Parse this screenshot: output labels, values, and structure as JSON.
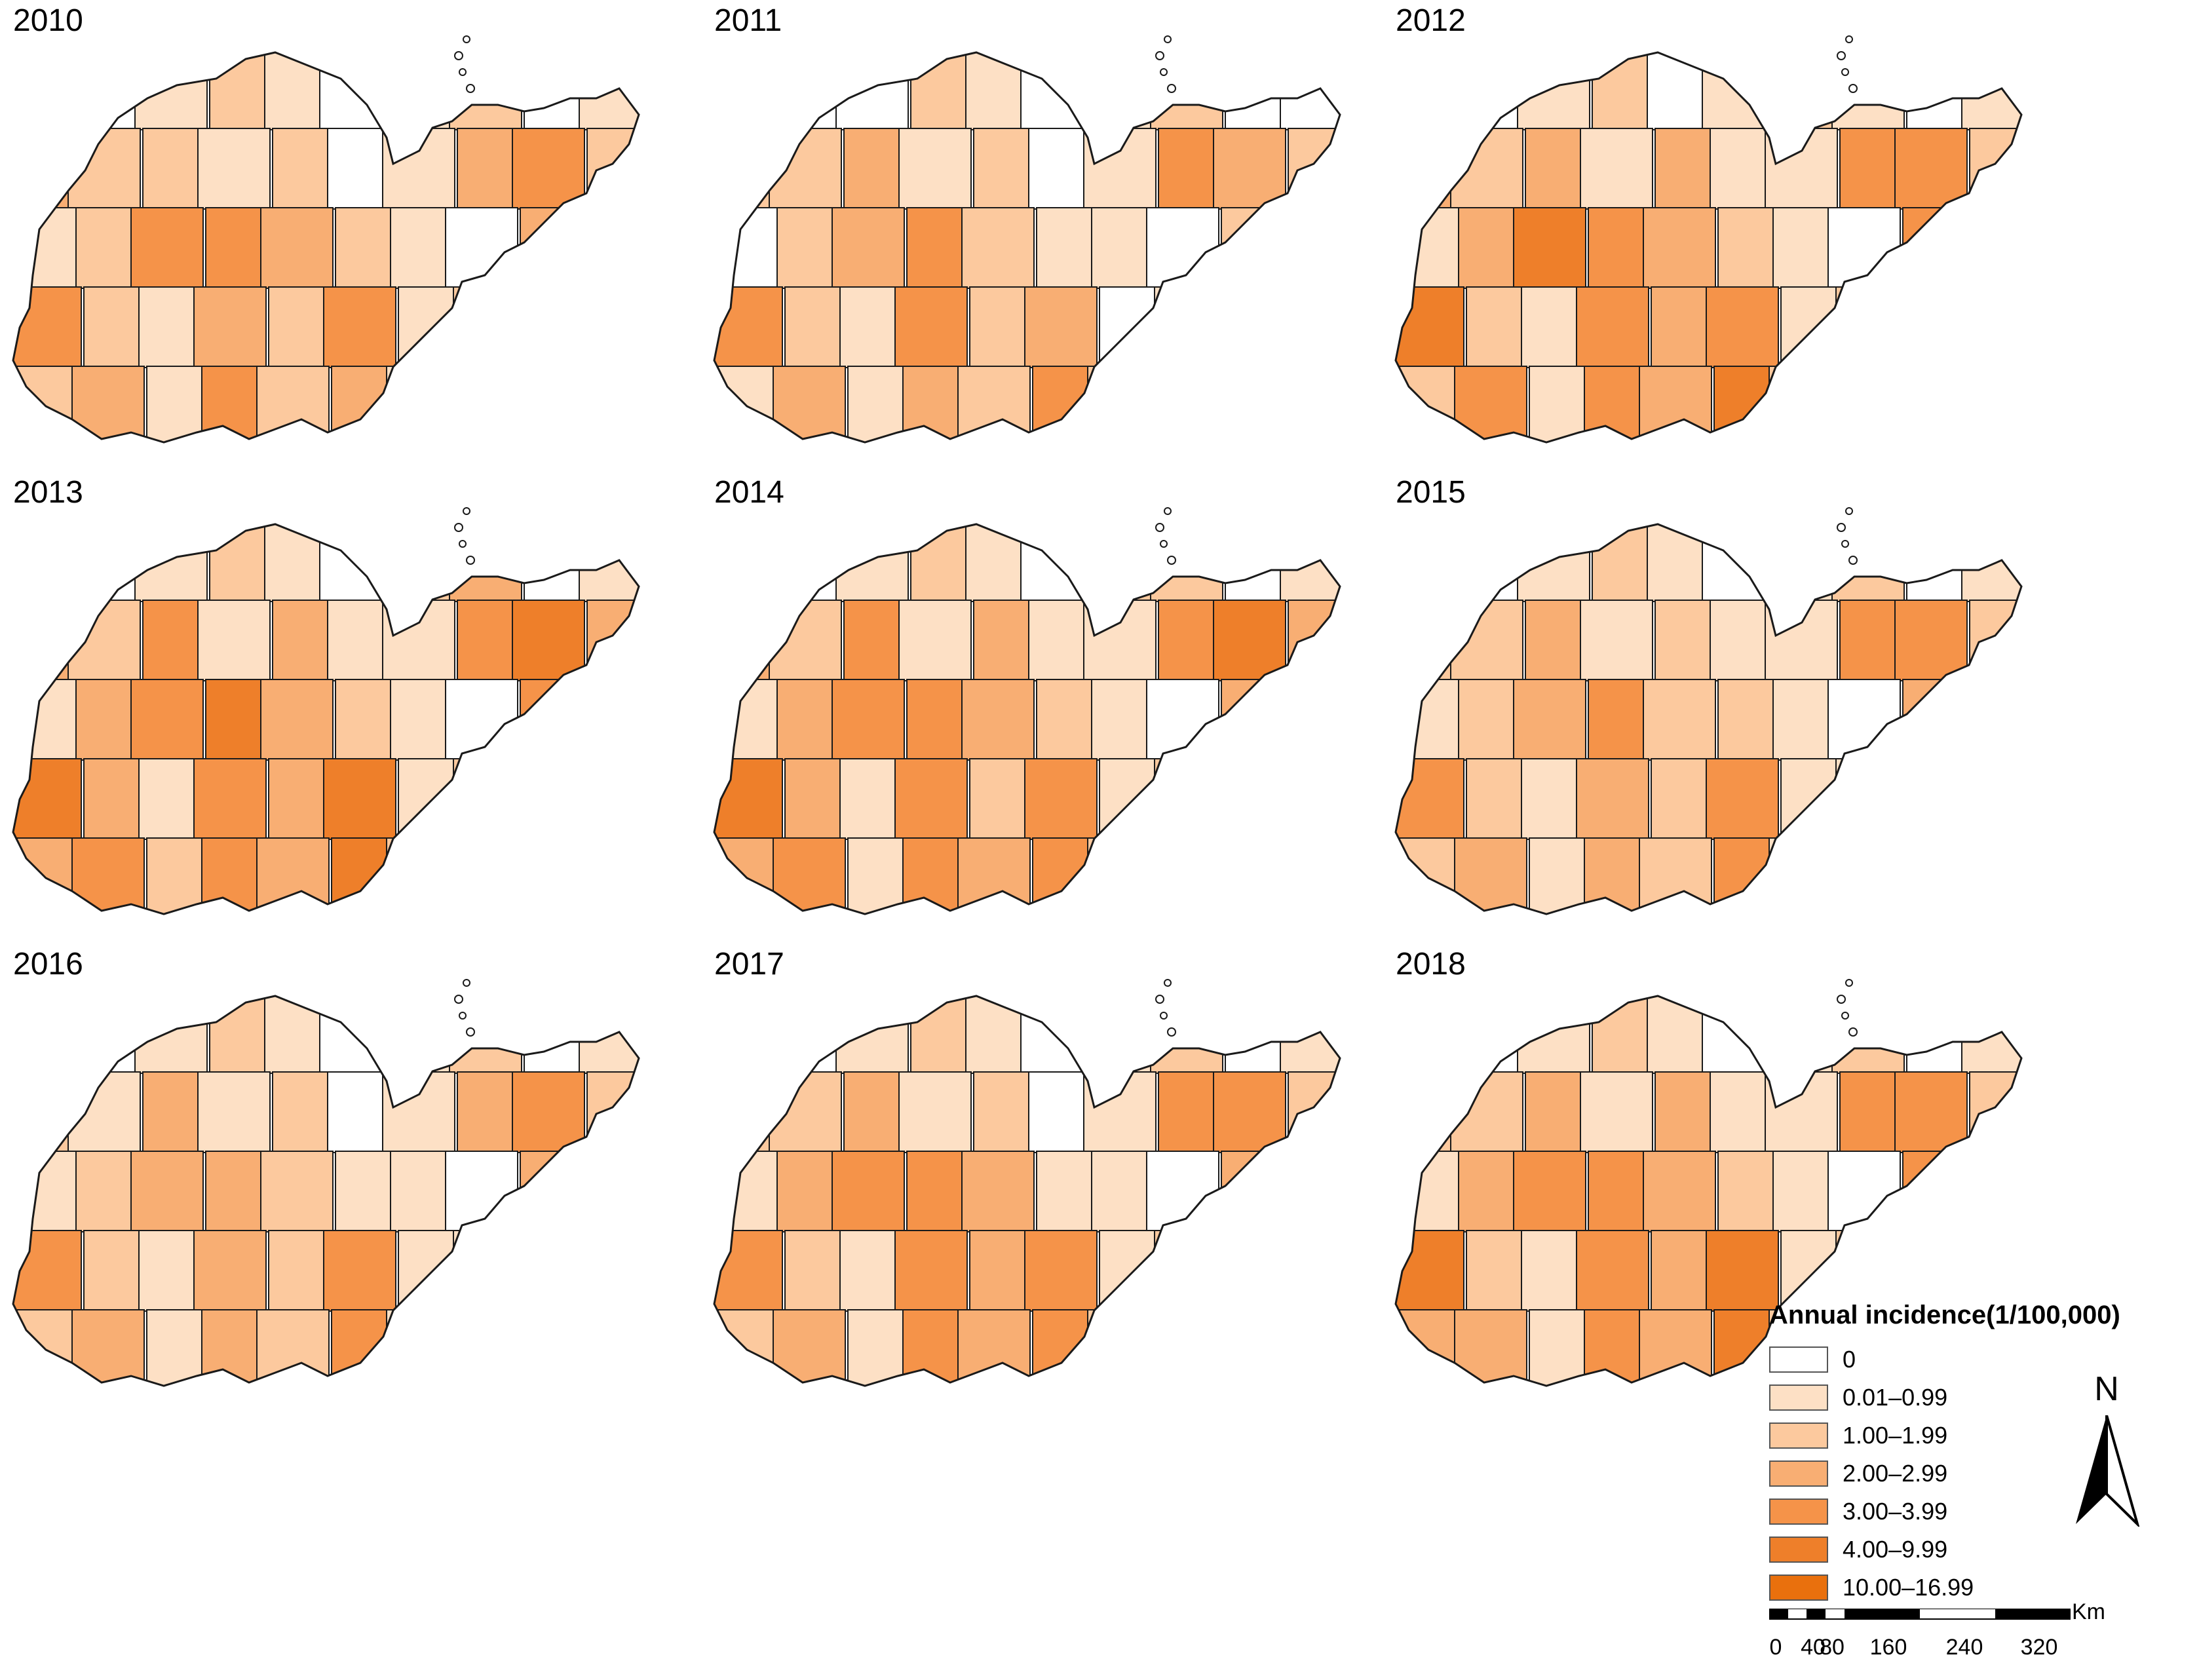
{
  "maps": [
    {
      "year": "2010",
      "levels": [
        2,
        0,
        1,
        2,
        1,
        0,
        1,
        2,
        0,
        1,
        3,
        2,
        2,
        1,
        2,
        0,
        1,
        3,
        4,
        2,
        1,
        2,
        4,
        4,
        3,
        2,
        1,
        0,
        3,
        4,
        4,
        2,
        1,
        3,
        2,
        4,
        1,
        2,
        0,
        1,
        2,
        3,
        1,
        4,
        2,
        3,
        1,
        0,
        1,
        2
      ]
    },
    {
      "year": "2011",
      "levels": [
        1,
        0,
        0,
        2,
        1,
        0,
        1,
        2,
        0,
        0,
        2,
        2,
        3,
        1,
        2,
        0,
        1,
        4,
        3,
        2,
        0,
        2,
        3,
        4,
        2,
        1,
        1,
        0,
        2,
        3,
        4,
        2,
        1,
        4,
        2,
        3,
        0,
        1,
        0,
        2,
        1,
        3,
        1,
        3,
        2,
        4,
        2,
        0,
        1,
        1
      ]
    },
    {
      "year": "2012",
      "levels": [
        1,
        0,
        1,
        2,
        0,
        1,
        2,
        1,
        0,
        1,
        3,
        2,
        3,
        1,
        3,
        1,
        1,
        4,
        4,
        2,
        1,
        3,
        5,
        4,
        3,
        2,
        1,
        0,
        4,
        4,
        5,
        2,
        1,
        4,
        3,
        4,
        1,
        2,
        0,
        2,
        2,
        4,
        1,
        4,
        3,
        5,
        2,
        1,
        1,
        2
      ]
    },
    {
      "year": "2013",
      "levels": [
        3,
        0,
        1,
        2,
        1,
        0,
        2,
        3,
        0,
        1,
        3,
        2,
        4,
        1,
        3,
        1,
        1,
        4,
        5,
        3,
        1,
        3,
        4,
        5,
        3,
        2,
        1,
        0,
        4,
        4,
        5,
        3,
        1,
        4,
        3,
        5,
        1,
        2,
        0,
        2,
        3,
        4,
        2,
        4,
        3,
        5,
        2,
        0,
        2,
        3
      ]
    },
    {
      "year": "2014",
      "levels": [
        2,
        0,
        1,
        2,
        1,
        0,
        2,
        2,
        0,
        1,
        3,
        2,
        4,
        1,
        3,
        1,
        1,
        4,
        5,
        3,
        1,
        3,
        4,
        4,
        3,
        2,
        1,
        0,
        3,
        4,
        5,
        3,
        1,
        4,
        2,
        4,
        1,
        2,
        0,
        2,
        3,
        4,
        1,
        4,
        3,
        4,
        2,
        0,
        1,
        2
      ]
    },
    {
      "year": "2015",
      "levels": [
        1,
        0,
        1,
        2,
        1,
        0,
        1,
        2,
        0,
        1,
        2,
        2,
        3,
        1,
        2,
        1,
        1,
        4,
        4,
        2,
        1,
        2,
        3,
        4,
        2,
        2,
        1,
        0,
        3,
        3,
        4,
        2,
        1,
        3,
        2,
        4,
        1,
        1,
        0,
        2,
        2,
        3,
        1,
        3,
        2,
        4,
        1,
        0,
        1,
        2
      ]
    },
    {
      "year": "2016",
      "levels": [
        1,
        0,
        1,
        2,
        1,
        0,
        1,
        2,
        0,
        1,
        2,
        1,
        3,
        1,
        2,
        0,
        1,
        3,
        4,
        2,
        1,
        2,
        3,
        3,
        2,
        1,
        1,
        0,
        3,
        3,
        4,
        2,
        1,
        3,
        2,
        4,
        1,
        1,
        0,
        2,
        2,
        3,
        1,
        3,
        2,
        4,
        1,
        0,
        1,
        2
      ]
    },
    {
      "year": "2017",
      "levels": [
        2,
        0,
        1,
        2,
        1,
        0,
        1,
        2,
        0,
        1,
        2,
        2,
        3,
        1,
        2,
        0,
        1,
        4,
        4,
        2,
        1,
        3,
        4,
        4,
        3,
        1,
        1,
        0,
        3,
        4,
        4,
        2,
        1,
        4,
        3,
        4,
        1,
        2,
        0,
        2,
        2,
        3,
        1,
        4,
        3,
        4,
        2,
        0,
        1,
        2
      ]
    },
    {
      "year": "2018",
      "levels": [
        2,
        0,
        1,
        2,
        1,
        0,
        1,
        2,
        0,
        1,
        2,
        2,
        3,
        1,
        3,
        1,
        1,
        4,
        4,
        2,
        1,
        3,
        4,
        4,
        3,
        2,
        1,
        0,
        4,
        4,
        5,
        2,
        1,
        4,
        3,
        5,
        1,
        2,
        0,
        2,
        3,
        3,
        1,
        4,
        3,
        5,
        2,
        0,
        1,
        2
      ]
    }
  ],
  "legend": {
    "title": "Annual incidence(1/100,000)",
    "items": [
      {
        "label": "0",
        "color": "#ffffff"
      },
      {
        "label": "0.01–0.99",
        "color": "#fde0c5"
      },
      {
        "label": "1.00–1.99",
        "color": "#fcc99e"
      },
      {
        "label": "2.00–2.99",
        "color": "#f8ae73"
      },
      {
        "label": "3.00–3.99",
        "color": "#f59349"
      },
      {
        "label": "4.00–9.99",
        "color": "#ee7f2a"
      },
      {
        "label": "10.00–16.99",
        "color": "#e9700d"
      }
    ]
  },
  "north_arrow": {
    "label": "N"
  },
  "scale_bar": {
    "unit": "Km",
    "ticks": [
      "0",
      "40",
      "80",
      "160",
      "240",
      "320"
    ]
  },
  "colors": {
    "border": "#1a1a1a"
  }
}
